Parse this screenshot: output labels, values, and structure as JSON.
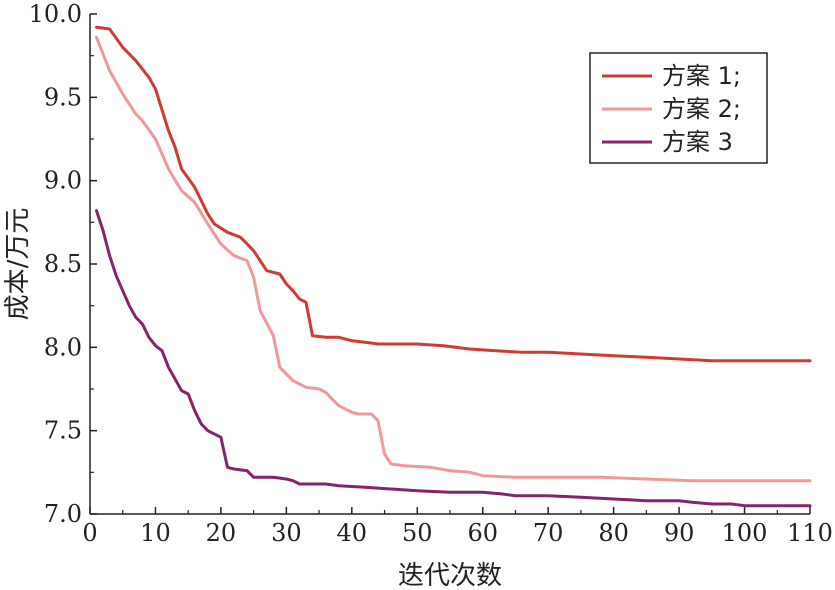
{
  "chart_data": {
    "type": "line",
    "xlabel": "迭代次数",
    "ylabel": "成本/万元",
    "xlim": [
      0,
      110
    ],
    "ylim": [
      7.0,
      10.0
    ],
    "x_ticks": [
      "0",
      "10",
      "20",
      "30",
      "40",
      "50",
      "60",
      "70",
      "80",
      "90",
      "100",
      "110"
    ],
    "y_ticks": [
      "7.0",
      "7.5",
      "8.0",
      "8.5",
      "9.0",
      "9.5",
      "10.0"
    ],
    "grid": false,
    "legend_position": "top-right",
    "series": [
      {
        "name": "方案 1;",
        "color": "#d03a32",
        "points": [
          [
            1,
            9.92
          ],
          [
            3,
            9.91
          ],
          [
            5,
            9.8
          ],
          [
            7,
            9.72
          ],
          [
            9,
            9.62
          ],
          [
            10,
            9.55
          ],
          [
            12,
            9.3
          ],
          [
            13,
            9.2
          ],
          [
            14,
            9.07
          ],
          [
            16,
            8.96
          ],
          [
            18,
            8.8
          ],
          [
            19,
            8.74
          ],
          [
            21,
            8.69
          ],
          [
            23,
            8.66
          ],
          [
            24,
            8.62
          ],
          [
            25,
            8.58
          ],
          [
            26,
            8.52
          ],
          [
            27,
            8.46
          ],
          [
            29,
            8.44
          ],
          [
            30,
            8.38
          ],
          [
            31,
            8.34
          ],
          [
            32,
            8.29
          ],
          [
            33,
            8.27
          ],
          [
            34,
            8.07
          ],
          [
            36,
            8.06
          ],
          [
            38,
            8.06
          ],
          [
            40,
            8.04
          ],
          [
            42,
            8.03
          ],
          [
            44,
            8.02
          ],
          [
            50,
            8.02
          ],
          [
            54,
            8.01
          ],
          [
            58,
            7.99
          ],
          [
            62,
            7.98
          ],
          [
            66,
            7.97
          ],
          [
            70,
            7.97
          ],
          [
            75,
            7.96
          ],
          [
            80,
            7.95
          ],
          [
            85,
            7.94
          ],
          [
            90,
            7.93
          ],
          [
            95,
            7.92
          ],
          [
            100,
            7.92
          ],
          [
            110,
            7.92
          ]
        ]
      },
      {
        "name": "方案 2;",
        "color": "#f0999b",
        "points": [
          [
            1,
            9.86
          ],
          [
            2,
            9.76
          ],
          [
            3,
            9.66
          ],
          [
            5,
            9.52
          ],
          [
            7,
            9.4
          ],
          [
            8,
            9.36
          ],
          [
            10,
            9.25
          ],
          [
            12,
            9.07
          ],
          [
            14,
            8.94
          ],
          [
            16,
            8.87
          ],
          [
            18,
            8.74
          ],
          [
            20,
            8.62
          ],
          [
            22,
            8.55
          ],
          [
            24,
            8.52
          ],
          [
            25,
            8.42
          ],
          [
            26,
            8.22
          ],
          [
            28,
            8.07
          ],
          [
            29,
            7.88
          ],
          [
            31,
            7.8
          ],
          [
            33,
            7.76
          ],
          [
            35,
            7.75
          ],
          [
            36,
            7.73
          ],
          [
            38,
            7.65
          ],
          [
            40,
            7.61
          ],
          [
            41,
            7.6
          ],
          [
            43,
            7.6
          ],
          [
            44,
            7.56
          ],
          [
            45,
            7.36
          ],
          [
            46,
            7.3
          ],
          [
            48,
            7.29
          ],
          [
            52,
            7.28
          ],
          [
            55,
            7.26
          ],
          [
            58,
            7.25
          ],
          [
            60,
            7.23
          ],
          [
            65,
            7.22
          ],
          [
            70,
            7.22
          ],
          [
            78,
            7.22
          ],
          [
            85,
            7.21
          ],
          [
            92,
            7.2
          ],
          [
            100,
            7.2
          ],
          [
            110,
            7.2
          ]
        ]
      },
      {
        "name": "方案 3",
        "color": "#84246a",
        "points": [
          [
            1,
            8.82
          ],
          [
            2,
            8.7
          ],
          [
            3,
            8.55
          ],
          [
            4,
            8.43
          ],
          [
            6,
            8.25
          ],
          [
            7,
            8.18
          ],
          [
            8,
            8.14
          ],
          [
            9,
            8.06
          ],
          [
            10,
            8.01
          ],
          [
            11,
            7.98
          ],
          [
            12,
            7.88
          ],
          [
            14,
            7.74
          ],
          [
            15,
            7.72
          ],
          [
            16,
            7.62
          ],
          [
            17,
            7.54
          ],
          [
            18,
            7.5
          ],
          [
            20,
            7.46
          ],
          [
            21,
            7.28
          ],
          [
            22,
            7.27
          ],
          [
            24,
            7.26
          ],
          [
            25,
            7.22
          ],
          [
            28,
            7.22
          ],
          [
            30,
            7.21
          ],
          [
            31,
            7.2
          ],
          [
            32,
            7.18
          ],
          [
            36,
            7.18
          ],
          [
            38,
            7.17
          ],
          [
            42,
            7.16
          ],
          [
            46,
            7.15
          ],
          [
            50,
            7.14
          ],
          [
            55,
            7.13
          ],
          [
            60,
            7.13
          ],
          [
            63,
            7.12
          ],
          [
            65,
            7.11
          ],
          [
            70,
            7.11
          ],
          [
            75,
            7.1
          ],
          [
            80,
            7.09
          ],
          [
            85,
            7.08
          ],
          [
            90,
            7.08
          ],
          [
            92,
            7.07
          ],
          [
            95,
            7.06
          ],
          [
            98,
            7.06
          ],
          [
            100,
            7.05
          ],
          [
            110,
            7.05
          ]
        ]
      }
    ]
  }
}
